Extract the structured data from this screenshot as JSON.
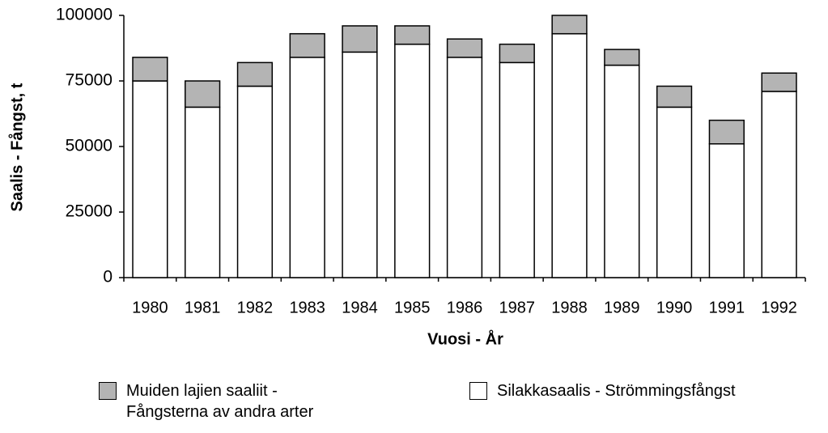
{
  "chart_data": {
    "type": "stacked_bar",
    "categories": [
      "1980",
      "1981",
      "1982",
      "1983",
      "1984",
      "1985",
      "1986",
      "1987",
      "1988",
      "1989",
      "1990",
      "1991",
      "1992"
    ],
    "series": [
      {
        "name": "Silakkasaalis - Strömmingsfångst",
        "color": "#ffffff",
        "values": [
          75000,
          65000,
          73000,
          84000,
          86000,
          89000,
          84000,
          82000,
          93000,
          81000,
          65000,
          51000,
          71000
        ]
      },
      {
        "name": "Muiden lajien saaliit - Fångsterna av andra arter",
        "color": "#b4b4b4",
        "values": [
          9000,
          10000,
          9000,
          9000,
          10000,
          7000,
          7000,
          7000,
          7000,
          6000,
          8000,
          9000,
          7000
        ]
      }
    ],
    "x_label": "Vuosi - År",
    "y_label": "Saalis - Fångst, t",
    "ylim": [
      0,
      100000
    ],
    "yticks": [
      0,
      25000,
      50000,
      75000,
      100000
    ],
    "grid": false
  }
}
